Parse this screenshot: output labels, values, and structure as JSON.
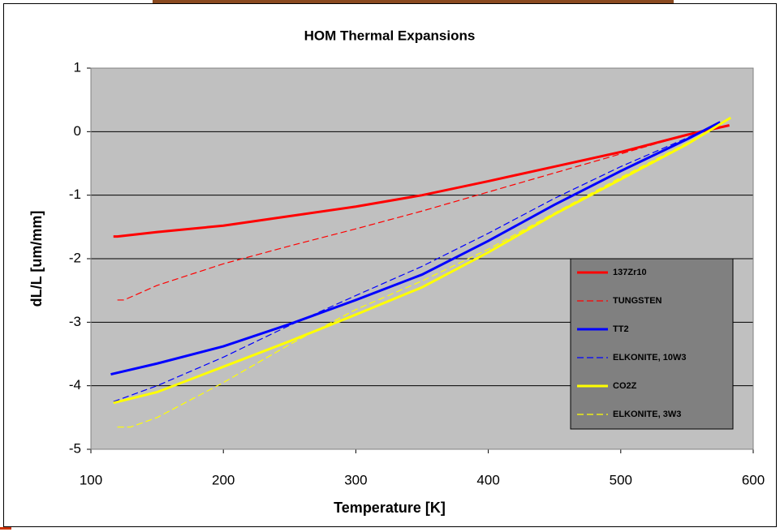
{
  "chart_data": {
    "type": "line",
    "title": "HOM Thermal Expansions",
    "x_label": "Temperature [K]",
    "y_label": "dL/L [um/mm]",
    "xlim": [
      100,
      600
    ],
    "xticks": [
      100,
      200,
      300,
      400,
      500,
      600
    ],
    "ylim": [
      -5,
      1
    ],
    "yticks": [
      -5,
      -4,
      -3,
      -2,
      -1,
      0,
      1
    ],
    "grid": true,
    "legend": "right",
    "background": "#c0c0c0",
    "series": [
      {
        "name": "137Zr10",
        "color": "#ff0000",
        "dashed": false,
        "x": [
          117,
          120,
          150,
          200,
          250,
          300,
          350,
          400,
          450,
          500,
          550,
          582
        ],
        "values": [
          -1.65,
          -1.65,
          -1.58,
          -1.48,
          -1.33,
          -1.18,
          -1.0,
          -0.78,
          -0.55,
          -0.32,
          -0.05,
          0.1
        ]
      },
      {
        "name": "TUNGSTEN",
        "color": "#ff0000",
        "dashed": true,
        "x": [
          120,
          125,
          150,
          200,
          250,
          300,
          350,
          400,
          450,
          500,
          550,
          575
        ],
        "values": [
          -2.65,
          -2.65,
          -2.42,
          -2.08,
          -1.8,
          -1.53,
          -1.25,
          -0.95,
          -0.65,
          -0.35,
          -0.05,
          0.1
        ]
      },
      {
        "name": "TT2",
        "color": "#0000ff",
        "dashed": false,
        "x": [
          115,
          150,
          200,
          250,
          300,
          350,
          400,
          450,
          500,
          550,
          575
        ],
        "values": [
          -3.82,
          -3.65,
          -3.38,
          -3.03,
          -2.65,
          -2.25,
          -1.72,
          -1.15,
          -0.62,
          -0.12,
          0.15
        ]
      },
      {
        "name": "ELKONITE, 10W3",
        "color": "#0000ff",
        "dashed": true,
        "x": [
          117,
          150,
          200,
          250,
          300,
          350,
          400,
          450,
          500,
          550,
          575
        ],
        "values": [
          -4.25,
          -4.0,
          -3.55,
          -3.05,
          -2.58,
          -2.12,
          -1.6,
          -1.05,
          -0.55,
          -0.1,
          0.15
        ]
      },
      {
        "name": "CO2Z",
        "color": "#ffff00",
        "dashed": false,
        "x": [
          117,
          150,
          200,
          250,
          300,
          350,
          400,
          450,
          500,
          550,
          583
        ],
        "values": [
          -4.27,
          -4.1,
          -3.7,
          -3.3,
          -2.88,
          -2.45,
          -1.9,
          -1.3,
          -0.75,
          -0.2,
          0.22
        ]
      },
      {
        "name": "ELKONITE, 3W3",
        "color": "#ffff00",
        "dashed": true,
        "x": [
          120,
          130,
          150,
          200,
          250,
          300,
          350,
          400,
          450,
          500,
          550,
          583
        ],
        "values": [
          -4.65,
          -4.65,
          -4.5,
          -3.95,
          -3.35,
          -2.8,
          -2.35,
          -1.85,
          -1.28,
          -0.72,
          -0.18,
          0.22
        ]
      }
    ]
  }
}
